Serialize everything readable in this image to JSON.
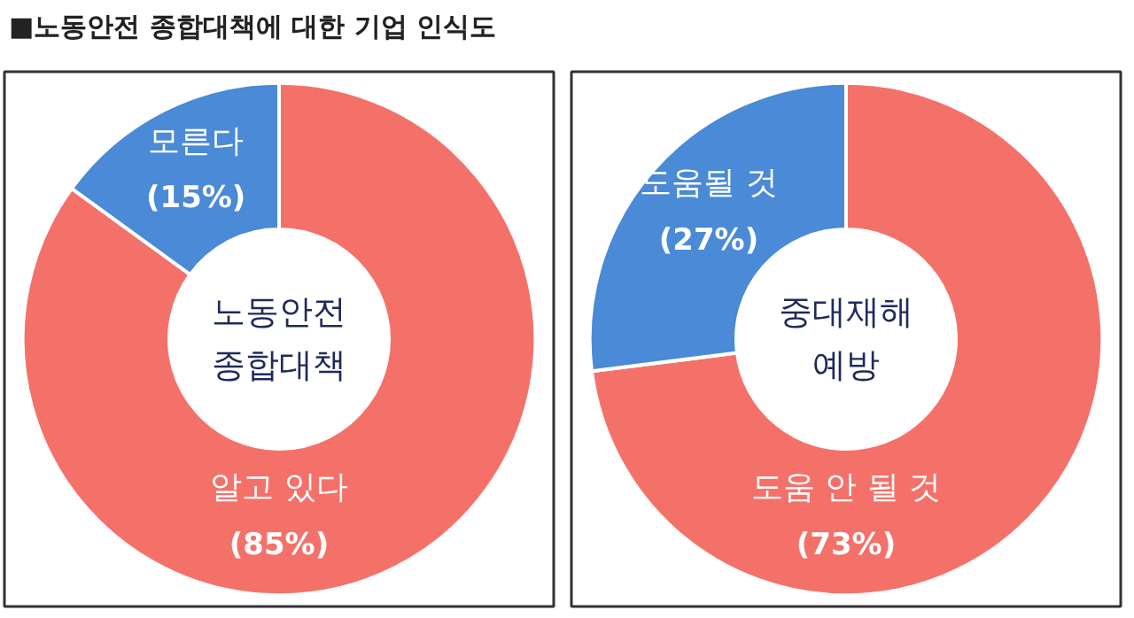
{
  "chart_data": [
    {
      "type": "donut",
      "title": "■노동안전 종합대책에 대한 기업 인식도",
      "categories": [
        "알고 있다",
        "모른다"
      ],
      "values": [
        85,
        15
      ],
      "colors": [
        "#f4716a",
        "#4a8ad6"
      ],
      "value_labels": [
        "(85%)",
        "(15%)"
      ],
      "annotations": [
        "노동안전\n종합대책"
      ],
      "legend": false
    },
    {
      "type": "donut",
      "categories": [
        "도움 안 될 것",
        "도움될 것"
      ],
      "values": [
        73,
        27
      ],
      "colors": [
        "#f4716a",
        "#4a8ad6"
      ],
      "value_labels": [
        "(73%)",
        "(27%)"
      ],
      "annotations": [
        "중대재해\n예방"
      ],
      "legend": false
    }
  ]
}
